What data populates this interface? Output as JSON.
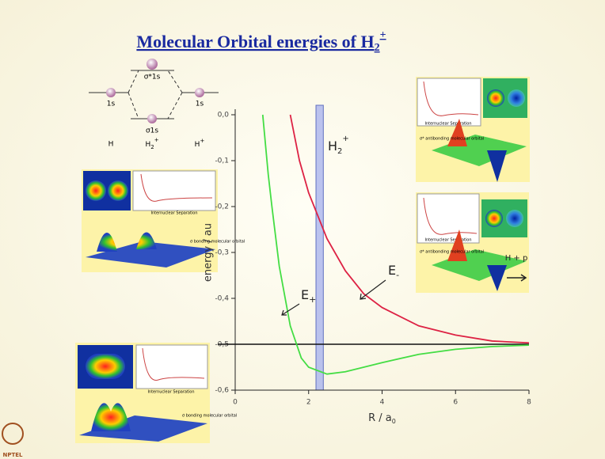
{
  "slide": {
    "title": "Molecular Orbital energies of H",
    "title_sub": "2",
    "title_sup": "+",
    "mo_diagram": {
      "left_orbital": "1s",
      "right_orbital": "1s",
      "antibonding": "σ*1s",
      "bonding": "σ1s",
      "left_atom": "H",
      "molecule": "H",
      "molecule_sub": "2",
      "molecule_sup": "+",
      "right_atom": "H",
      "right_atom_sup": "+"
    },
    "insets": [
      {
        "axis_label": "Internuclear Separation",
        "caption": "σ bonding molecular orbital"
      },
      {
        "axis_label": "Internuclear Separation",
        "caption": "σ* antibonding molecular orbital"
      },
      {
        "axis_label": "Internuclear Separation",
        "caption": "σ* antibonding molecular orbital"
      },
      {
        "axis_label": "Internuclear Separation",
        "caption": "σ bonding molecular orbital"
      }
    ],
    "logo": "NPTEL"
  },
  "chart_data": {
    "type": "line",
    "xlabel": "R / a",
    "xlabel_sub": "0",
    "ylabel": "energy / au",
    "xlim": [
      0,
      8
    ],
    "xticks": [
      0,
      2,
      4,
      6,
      8
    ],
    "ylim": [
      -0.6,
      0.0
    ],
    "yticks": [
      {
        "value": 0.0,
        "label": "0,0"
      },
      {
        "value": -0.1,
        "label": "-0,1"
      },
      {
        "value": -0.2,
        "label": "-0,2"
      },
      {
        "value": -0.3,
        "label": "-0,3"
      },
      {
        "value": -0.4,
        "label": "-0,4"
      },
      {
        "value": -0.5,
        "label": "-0,5"
      },
      {
        "value": -0.6,
        "label": "-0,6"
      }
    ],
    "series": [
      {
        "name": "E",
        "name_sub": "+",
        "color": "#44dd44",
        "x": [
          0.75,
          0.9,
          1.0,
          1.2,
          1.5,
          1.8,
          2.0,
          2.5,
          3.0,
          4.0,
          5.0,
          6.0,
          7.0,
          8.0
        ],
        "values": [
          0.0,
          -0.13,
          -0.2,
          -0.33,
          -0.46,
          -0.53,
          -0.55,
          -0.565,
          -0.56,
          -0.54,
          -0.522,
          -0.511,
          -0.505,
          -0.502
        ]
      },
      {
        "name": "E",
        "name_sub": "-",
        "color": "#dd2244",
        "x": [
          1.5,
          1.75,
          2.0,
          2.5,
          3.0,
          3.5,
          4.0,
          5.0,
          6.0,
          7.0,
          8.0
        ],
        "values": [
          0.0,
          -0.1,
          -0.17,
          -0.27,
          -0.34,
          -0.39,
          -0.42,
          -0.46,
          -0.48,
          -0.493,
          -0.497
        ]
      }
    ],
    "reference_line": -0.5,
    "reference_label": "H + p",
    "highlight_band": [
      2.2,
      2.4
    ],
    "band_label": "H",
    "band_label_sub": "2",
    "band_label_sup": "+"
  }
}
